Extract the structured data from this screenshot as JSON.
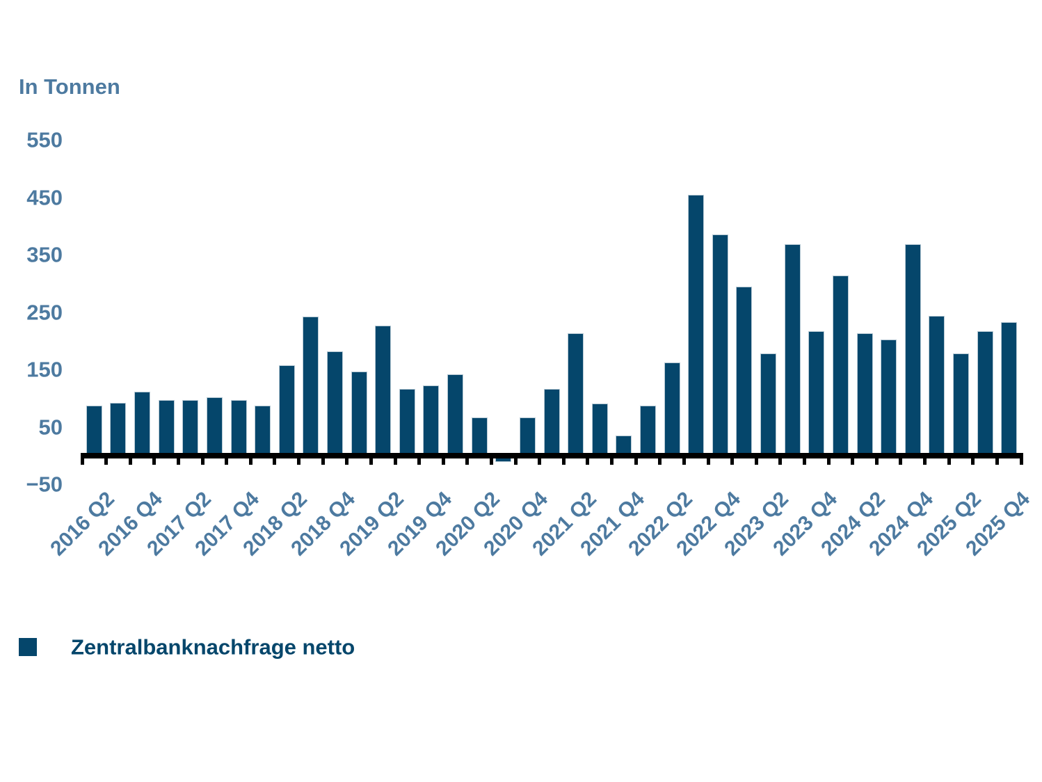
{
  "chart_data": {
    "type": "bar",
    "title": "In Tonnen",
    "legend": [
      "Zentralbanknachfrage netto"
    ],
    "legend_position": "bottom-left",
    "grid": false,
    "ylim": [
      -50,
      550
    ],
    "yticks": [
      550,
      450,
      350,
      250,
      150,
      50,
      -50
    ],
    "ytick_labels": [
      "550",
      "450",
      "350",
      "250",
      "150",
      "50",
      "−50"
    ],
    "x_label_every": 2,
    "x_tick_labels": [
      "2016 Q2",
      "2016 Q4",
      "2017 Q2",
      "2017 Q4",
      "2018 Q2",
      "2018 Q4",
      "2019 Q2",
      "2019 Q4",
      "2020 Q2",
      "2020 Q4",
      "2021 Q2",
      "2021 Q4",
      "2022 Q2",
      "2022 Q4",
      "2023 Q2",
      "2023 Q4",
      "2024 Q2",
      "2024 Q4",
      "2025 Q2",
      "2025 Q4"
    ],
    "categories": [
      "2016 Q2",
      "2016 Q3",
      "2016 Q4",
      "2017 Q1",
      "2017 Q2",
      "2017 Q3",
      "2017 Q4",
      "2018 Q1",
      "2018 Q2",
      "2018 Q3",
      "2018 Q4",
      "2019 Q1",
      "2019 Q2",
      "2019 Q3",
      "2019 Q4",
      "2020 Q1",
      "2020 Q2",
      "2020 Q3",
      "2020 Q4",
      "2021 Q1",
      "2021 Q2",
      "2021 Q3",
      "2021 Q4",
      "2022 Q1",
      "2022 Q2",
      "2022 Q3",
      "2022 Q4",
      "2023 Q1",
      "2023 Q2",
      "2023 Q3",
      "2023 Q4",
      "2024 Q1",
      "2024 Q2",
      "2024 Q3",
      "2024 Q4",
      "2025 Q1",
      "2025 Q2",
      "2025 Q3",
      "2025 Q4"
    ],
    "values": [
      87,
      92,
      112,
      97,
      97,
      102,
      97,
      87,
      158,
      243,
      182,
      147,
      227,
      116,
      122,
      142,
      67,
      -11,
      67,
      116,
      213,
      91,
      35,
      87,
      162,
      455,
      385,
      294,
      178,
      369,
      217,
      314,
      213,
      203,
      369,
      244,
      178,
      217,
      233
    ],
    "colors": {
      "bar_fill": "#05466B",
      "bar_stroke": "#B7C9D4",
      "axis_text": "#4D7AA0",
      "legend_text": "#05466B",
      "axis_line": "#000000"
    }
  }
}
